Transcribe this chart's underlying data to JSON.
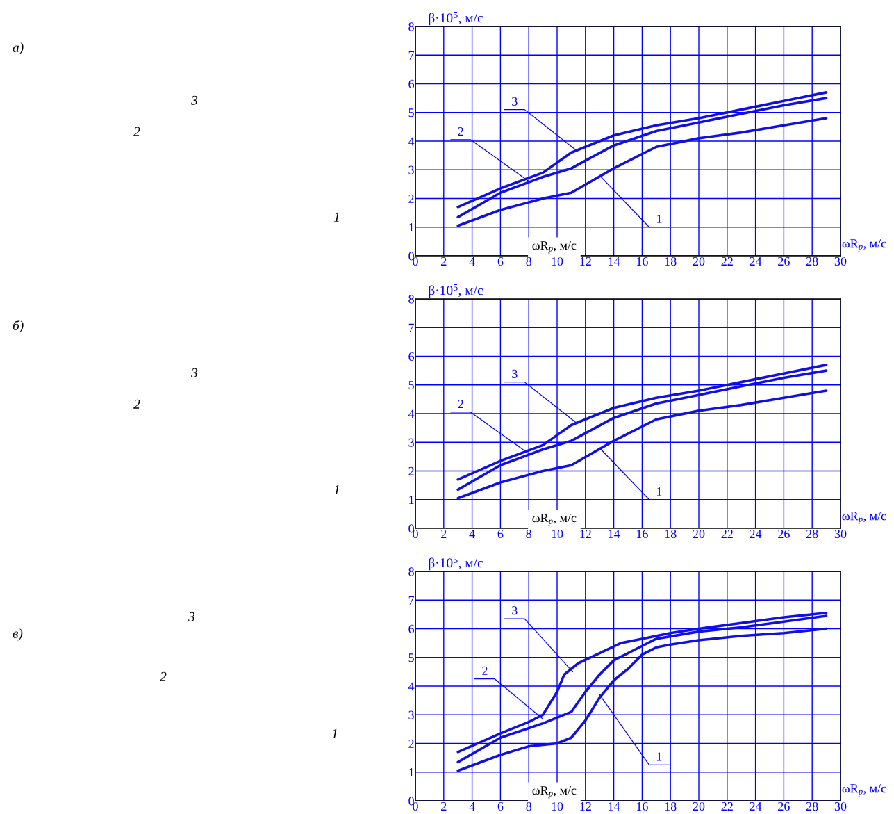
{
  "chart_data": [
    {
      "type": "line",
      "ylabel": "β·10$^{5}$, м/с",
      "xlabel": "ωR$_{р}$, м/с",
      "xlim": [
        0,
        30
      ],
      "ylim": [
        0,
        8
      ],
      "xticks": [
        0,
        2,
        4,
        6,
        8,
        10,
        12,
        14,
        16,
        18,
        20,
        22,
        24,
        26,
        28,
        30
      ],
      "yticks": [
        0,
        1,
        2,
        3,
        4,
        5,
        6,
        7,
        8
      ],
      "grid": true,
      "x": [
        3,
        6,
        9,
        11,
        14,
        17,
        20,
        23,
        26,
        29
      ],
      "series": [
        {
          "color": "#1010e0",
          "values": [
            1.05,
            1.6,
            2.0,
            2.2,
            3.05,
            3.8,
            4.1,
            4.3,
            4.55,
            4.8
          ]
        },
        {
          "color": "#1010e0",
          "values": [
            1.35,
            2.2,
            2.75,
            3.05,
            3.85,
            4.35,
            4.65,
            4.95,
            5.25,
            5.5
          ]
        },
        {
          "color": "#1010e0",
          "values": [
            1.7,
            2.35,
            2.9,
            3.6,
            4.2,
            4.55,
            4.8,
            5.1,
            5.4,
            5.7
          ]
        }
      ],
      "annotations": [
        {
          "text": "3",
          "x": 11.3,
          "y": 3.7
        },
        {
          "text": "2",
          "x": 8,
          "y": 2.6
        },
        {
          "text": "1",
          "x": 13,
          "y": 2.8
        },
        "ωR$_{р}$, м/с",
        "а)",
        "3",
        "2",
        "1"
      ]
    },
    {
      "type": "line",
      "ylabel": "β·10$^{5}$, м/с",
      "xlabel": "ωR$_{р}$, м/с",
      "xlim": [
        0,
        30
      ],
      "ylim": [
        0,
        8
      ],
      "xticks": [
        0,
        2,
        4,
        6,
        8,
        10,
        12,
        14,
        16,
        18,
        20,
        22,
        24,
        26,
        28,
        30
      ],
      "yticks": [
        0,
        1,
        2,
        3,
        4,
        5,
        6,
        7,
        8
      ],
      "grid": true,
      "x": [
        3,
        6,
        9,
        11,
        14,
        17,
        20,
        23,
        26,
        29
      ],
      "series": [
        {
          "color": "#1010e0",
          "values": [
            1.05,
            1.6,
            2.0,
            2.2,
            3.05,
            3.8,
            4.1,
            4.3,
            4.55,
            4.8
          ]
        },
        {
          "color": "#1010e0",
          "values": [
            1.35,
            2.2,
            2.75,
            3.05,
            3.85,
            4.35,
            4.65,
            4.95,
            5.25,
            5.5
          ]
        },
        {
          "color": "#1010e0",
          "values": [
            1.7,
            2.35,
            2.9,
            3.6,
            4.2,
            4.55,
            4.8,
            5.1,
            5.4,
            5.7
          ]
        }
      ],
      "annotations": [
        {
          "text": "3",
          "x": 11.3,
          "y": 3.7
        },
        {
          "text": "2",
          "x": 8,
          "y": 2.6
        },
        {
          "text": "1",
          "x": 13,
          "y": 2.8
        },
        "ωR$_{р}$, м/с",
        "б)",
        "3",
        "2",
        "1"
      ]
    },
    {
      "type": "line",
      "ylabel": "β·10$^{5}$, м/с",
      "xlabel": "ωR$_{р}$, м/с",
      "xlim": [
        0,
        30
      ],
      "ylim": [
        0,
        8
      ],
      "xticks": [
        0,
        2,
        4,
        6,
        8,
        10,
        12,
        14,
        16,
        18,
        20,
        22,
        24,
        26,
        28,
        30
      ],
      "yticks": [
        0,
        1,
        2,
        3,
        4,
        5,
        6,
        7,
        8
      ],
      "grid": true,
      "series": [
        {
          "color": "#1010e0",
          "x": [
            3,
            6,
            8,
            10,
            11,
            12,
            13,
            14,
            15,
            16,
            17,
            18,
            20,
            23,
            26,
            29
          ],
          "values": [
            1.05,
            1.6,
            1.9,
            2.0,
            2.2,
            2.8,
            3.6,
            4.2,
            4.6,
            5.1,
            5.35,
            5.45,
            5.6,
            5.75,
            5.85,
            6.0
          ]
        },
        {
          "color": "#1010e0",
          "x": [
            3,
            6,
            9,
            11,
            12,
            13,
            14,
            15,
            16,
            17,
            20,
            23,
            26,
            29
          ],
          "values": [
            1.35,
            2.2,
            2.7,
            3.1,
            3.8,
            4.4,
            4.9,
            5.15,
            5.4,
            5.65,
            5.9,
            6.05,
            6.25,
            6.45
          ]
        },
        {
          "color": "#1010e0",
          "x": [
            3,
            6,
            8,
            9,
            10,
            10.5,
            11.5,
            13,
            14.5,
            16,
            18,
            20,
            23,
            26,
            29
          ],
          "values": [
            1.7,
            2.35,
            2.75,
            3.0,
            3.8,
            4.4,
            4.8,
            5.15,
            5.5,
            5.65,
            5.85,
            6.0,
            6.2,
            6.4,
            6.55
          ]
        }
      ],
      "annotations": [
        {
          "text": "3",
          "x": 11.1,
          "y": 4.5
        },
        {
          "text": "2",
          "x": 9,
          "y": 2.85
        },
        {
          "text": "1",
          "x": 13,
          "y": 3.7
        },
        "ωR$_{р}$, м/с",
        "в)",
        "3",
        "2",
        "1"
      ]
    }
  ]
}
